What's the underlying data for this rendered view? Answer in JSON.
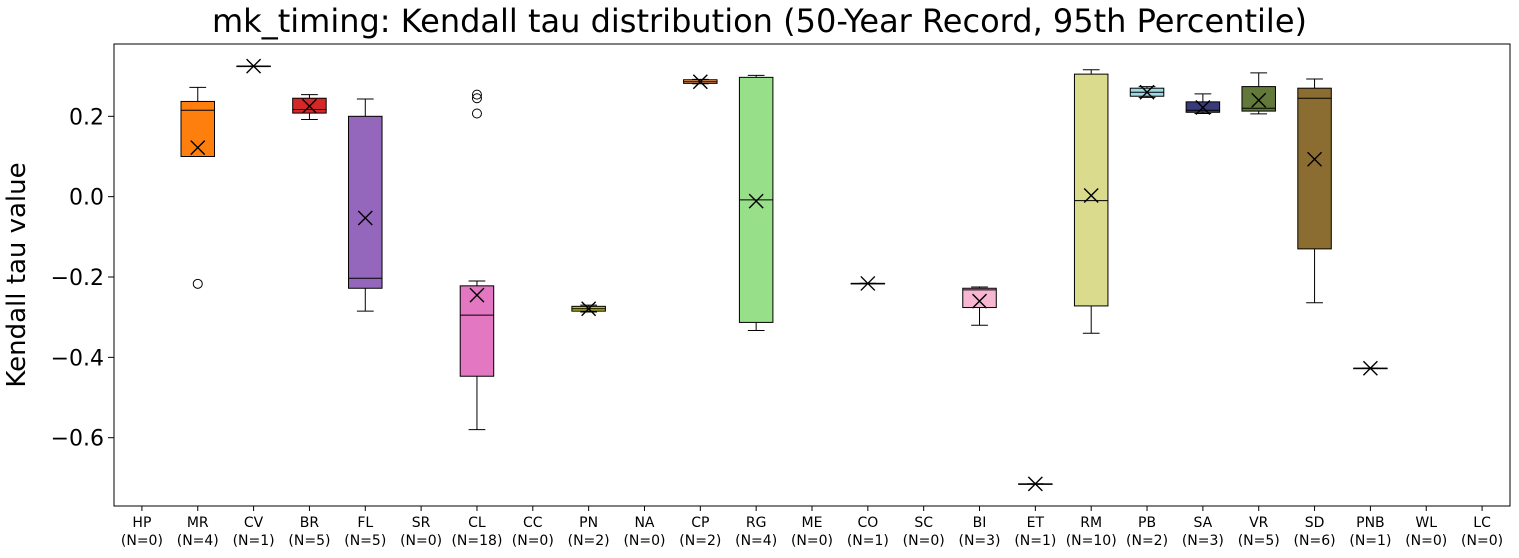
{
  "chart_data": {
    "type": "box",
    "title": "mk_timing: Kendall tau distribution (50-Year Record, 95th Percentile)",
    "ylabel": "Kendall tau value",
    "xlabel": "",
    "ylim": [
      -0.77,
      0.38
    ],
    "yticks": [
      -0.6,
      -0.4,
      -0.2,
      0.0,
      0.2
    ],
    "ytick_labels": [
      "−0.6",
      "−0.4",
      "−0.2",
      "0.0",
      "0.2"
    ],
    "grid": false,
    "categories": [
      {
        "name": "HP",
        "n": "(N=0)",
        "color": null,
        "box": null
      },
      {
        "name": "MR",
        "n": "(N=4)",
        "color": "#ff7f0e",
        "box": {
          "whislo": 0.1,
          "q1": 0.1,
          "median": 0.215,
          "q3": 0.237,
          "whishi": 0.272,
          "mean": 0.122,
          "fliers": [
            -0.217
          ]
        }
      },
      {
        "name": "CV",
        "n": "(N=1)",
        "color": "#ffffff",
        "box": {
          "whislo": 0.325,
          "q1": 0.325,
          "median": 0.325,
          "q3": 0.325,
          "whishi": 0.325,
          "mean": 0.325,
          "fliers": []
        }
      },
      {
        "name": "BR",
        "n": "(N=5)",
        "color": "#d62728",
        "box": {
          "whislo": 0.192,
          "q1": 0.208,
          "median": 0.217,
          "q3": 0.245,
          "whishi": 0.254,
          "mean": 0.225,
          "fliers": []
        }
      },
      {
        "name": "FL",
        "n": "(N=5)",
        "color": "#9467bd",
        "box": {
          "whislo": -0.285,
          "q1": -0.228,
          "median": -0.203,
          "q3": 0.2,
          "whishi": 0.243,
          "mean": -0.053,
          "fliers": []
        }
      },
      {
        "name": "SR",
        "n": "(N=0)",
        "color": null,
        "box": null
      },
      {
        "name": "CL",
        "n": "(N=18)",
        "color": "#e377c2",
        "box": {
          "whislo": -0.58,
          "q1": -0.447,
          "median": -0.295,
          "q3": -0.222,
          "whishi": -0.21,
          "mean": -0.245,
          "fliers": [
            0.207,
            0.245,
            0.254
          ]
        }
      },
      {
        "name": "CC",
        "n": "(N=0)",
        "color": null,
        "box": null
      },
      {
        "name": "PN",
        "n": "(N=2)",
        "color": "#bcbd22",
        "box": {
          "whislo": -0.287,
          "q1": -0.285,
          "median": -0.279,
          "q3": -0.273,
          "whishi": -0.27,
          "mean": -0.279,
          "fliers": []
        }
      },
      {
        "name": "NA",
        "n": "(N=0)",
        "color": null,
        "box": null
      },
      {
        "name": "CP",
        "n": "(N=2)",
        "color": "#ff9f5a",
        "box": {
          "whislo": 0.281,
          "q1": 0.282,
          "median": 0.286,
          "q3": 0.291,
          "whishi": 0.292,
          "mean": 0.286,
          "fliers": []
        }
      },
      {
        "name": "RG",
        "n": "(N=4)",
        "color": "#98df8a",
        "box": {
          "whislo": -0.333,
          "q1": -0.313,
          "median": -0.008,
          "q3": 0.297,
          "whishi": 0.302,
          "mean": -0.011,
          "fliers": []
        }
      },
      {
        "name": "ME",
        "n": "(N=0)",
        "color": null,
        "box": null
      },
      {
        "name": "CO",
        "n": "(N=1)",
        "color": "#ffffff",
        "box": {
          "whislo": -0.216,
          "q1": -0.216,
          "median": -0.216,
          "q3": -0.216,
          "whishi": -0.216,
          "mean": -0.216,
          "fliers": []
        }
      },
      {
        "name": "SC",
        "n": "(N=0)",
        "color": null,
        "box": null
      },
      {
        "name": "BI",
        "n": "(N=3)",
        "color": "#f7b6d2",
        "box": {
          "whislo": -0.32,
          "q1": -0.276,
          "median": -0.232,
          "q3": -0.228,
          "whishi": -0.225,
          "mean": -0.26,
          "fliers": []
        }
      },
      {
        "name": "ET",
        "n": "(N=1)",
        "color": "#ffffff",
        "box": {
          "whislo": -0.715,
          "q1": -0.715,
          "median": -0.715,
          "q3": -0.715,
          "whishi": -0.715,
          "mean": -0.715,
          "fliers": []
        }
      },
      {
        "name": "RM",
        "n": "(N=10)",
        "color": "#dbdb8d",
        "box": {
          "whislo": -0.34,
          "q1": -0.272,
          "median": -0.01,
          "q3": 0.305,
          "whishi": 0.316,
          "mean": 0.003,
          "fliers": []
        }
      },
      {
        "name": "PB",
        "n": "(N=2)",
        "color": "#9edae5",
        "box": {
          "whislo": 0.247,
          "q1": 0.25,
          "median": 0.26,
          "q3": 0.27,
          "whishi": 0.274,
          "mean": 0.26,
          "fliers": []
        }
      },
      {
        "name": "SA",
        "n": "(N=3)",
        "color": "#393b79",
        "box": {
          "whislo": 0.207,
          "q1": 0.21,
          "median": 0.215,
          "q3": 0.236,
          "whishi": 0.256,
          "mean": 0.222,
          "fliers": []
        }
      },
      {
        "name": "VR",
        "n": "(N=5)",
        "color": "#637939",
        "box": {
          "whislo": 0.206,
          "q1": 0.213,
          "median": 0.22,
          "q3": 0.274,
          "whishi": 0.308,
          "mean": 0.24,
          "fliers": []
        }
      },
      {
        "name": "SD",
        "n": "(N=6)",
        "color": "#8c6d31",
        "box": {
          "whislo": -0.264,
          "q1": -0.13,
          "median": 0.245,
          "q3": 0.27,
          "whishi": 0.293,
          "mean": 0.093,
          "fliers": []
        }
      },
      {
        "name": "PNB",
        "n": "(N=1)",
        "color": "#ffffff",
        "box": {
          "whislo": -0.427,
          "q1": -0.427,
          "median": -0.427,
          "q3": -0.427,
          "whishi": -0.427,
          "mean": -0.427,
          "fliers": []
        }
      },
      {
        "name": "WL",
        "n": "(N=0)",
        "color": null,
        "box": null
      },
      {
        "name": "LC",
        "n": "(N=0)",
        "color": null,
        "box": null
      }
    ]
  }
}
